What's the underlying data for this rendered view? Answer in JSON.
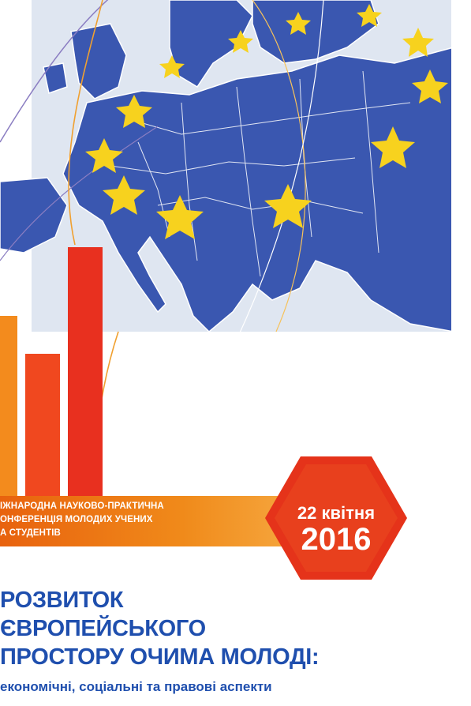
{
  "conference_band": {
    "line1": "ІЖНАРОДНА НАУКОВО-ПРАКТИЧНА",
    "line2": "ОНФЕРЕНЦІЯ МОЛОДИХ УЧЕНИХ",
    "line3": "А СТУДЕНТІВ"
  },
  "date": {
    "day_month": "22 квітня",
    "year": "2016"
  },
  "title": {
    "line1": "РОЗВИТОК",
    "line2": "ЄВРОПЕЙСЬКОГО",
    "line3": "ПРОСТОРУ ОЧИМА МОЛОДІ:"
  },
  "subtitle": "економічні, соціальні та правові аспекти",
  "colors": {
    "map_blue": "#3a57b0",
    "star_yellow": "#f7d21e",
    "band_orange": "#ec6f12",
    "hex_red": "#e5331a",
    "title_blue": "#1f4fae"
  }
}
